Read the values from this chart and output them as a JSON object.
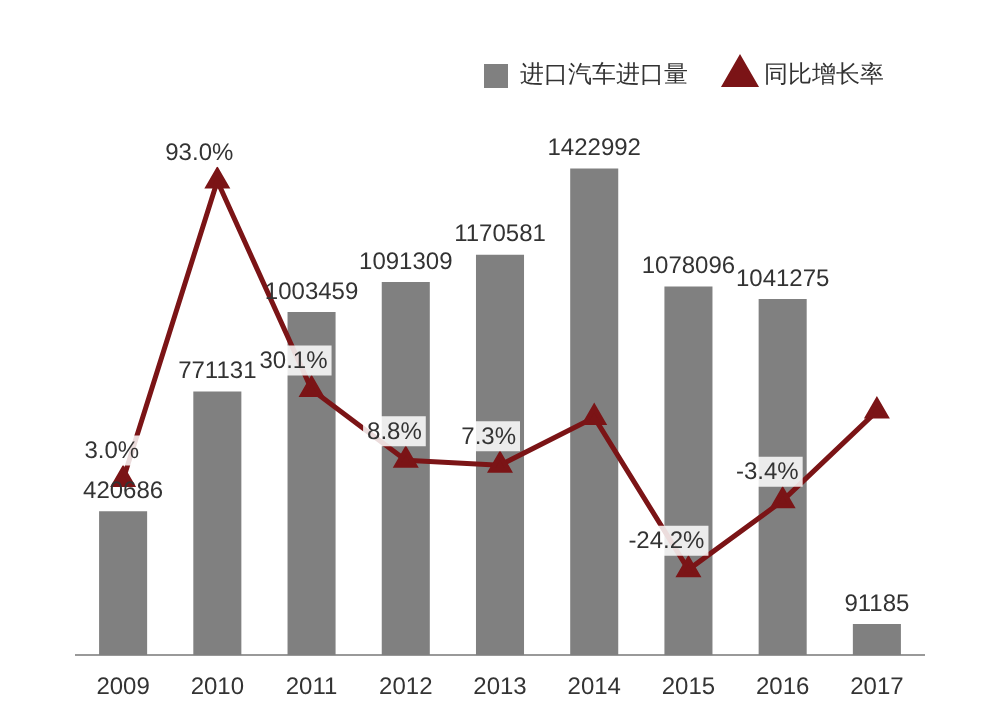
{
  "chart_data": {
    "type": "bar",
    "categories": [
      "2009",
      "2010",
      "2011",
      "2012",
      "2013",
      "2014",
      "2015",
      "2016",
      "2017"
    ],
    "series": [
      {
        "name": "进口汽车进口量",
        "color": "#808080",
        "values": [
          420686,
          771131,
          1003459,
          1091309,
          1170581,
          1422992,
          1078096,
          1041275,
          91185
        ],
        "value_labels": [
          "420686",
          "771131",
          "1003459",
          "1091309",
          "1170581",
          "1422992",
          "1078096",
          "1041275",
          "91185"
        ]
      },
      {
        "name": "同比增长率",
        "type": "line",
        "axis": "y2",
        "color": "#7b1416",
        "marker": "triangle",
        "values": [
          3.0,
          93.0,
          30.1,
          8.8,
          7.3,
          21.7,
          -24.2,
          -3.4,
          23.6
        ],
        "value_labels": [
          "3.0%",
          "93.0%",
          "30.1%",
          "8.8%",
          "7.3%",
          null,
          "-24.2%",
          "-3.4%",
          null
        ]
      }
    ],
    "tick_labels": "x",
    "legend": "top right",
    "grid": false
  }
}
